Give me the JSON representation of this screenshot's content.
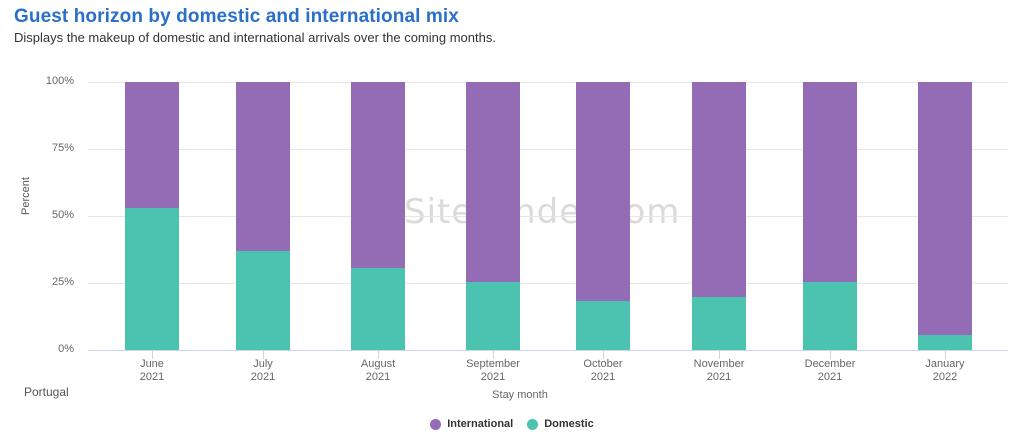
{
  "header": {
    "title": "Guest horizon by domestic and international mix",
    "subtitle": "Displays the makeup of domestic and international arrivals over the coming months."
  },
  "filter": {
    "country": "Portugal"
  },
  "watermark": "SiteMinder.com",
  "colors": {
    "international": "#946bb5",
    "domestic": "#4cc3b1",
    "title": "#2a6fc9"
  },
  "chart_data": {
    "type": "bar",
    "stacked": true,
    "title": "Guest horizon by domestic and international mix",
    "subtitle": "Displays the makeup of domestic and international arrivals over the coming months.",
    "xlabel": "Stay month",
    "ylabel": "Percent",
    "ylim": [
      0,
      100
    ],
    "yticks": [
      "0%",
      "25%",
      "50%",
      "75%",
      "100%"
    ],
    "grid": true,
    "legend_position": "bottom",
    "categories": [
      "June 2021",
      "July 2021",
      "August 2021",
      "September 2021",
      "October 2021",
      "November 2021",
      "December 2021",
      "January 2022"
    ],
    "category_lines": [
      [
        "June",
        "2021"
      ],
      [
        "July",
        "2021"
      ],
      [
        "August",
        "2021"
      ],
      [
        "September",
        "2021"
      ],
      [
        "October",
        "2021"
      ],
      [
        "November",
        "2021"
      ],
      [
        "December",
        "2021"
      ],
      [
        "January",
        "2022"
      ]
    ],
    "series": [
      {
        "name": "International",
        "color": "#946bb5",
        "values": [
          47,
          63,
          69.5,
          74.7,
          81.7,
          80.1,
          74.7,
          94.3
        ]
      },
      {
        "name": "Domestic",
        "color": "#4cc3b1",
        "values": [
          53,
          37,
          30.5,
          25.3,
          18.3,
          19.9,
          25.3,
          5.7
        ]
      }
    ]
  },
  "legend": [
    {
      "label": "International",
      "color": "#946bb5"
    },
    {
      "label": "Domestic",
      "color": "#4cc3b1"
    }
  ]
}
